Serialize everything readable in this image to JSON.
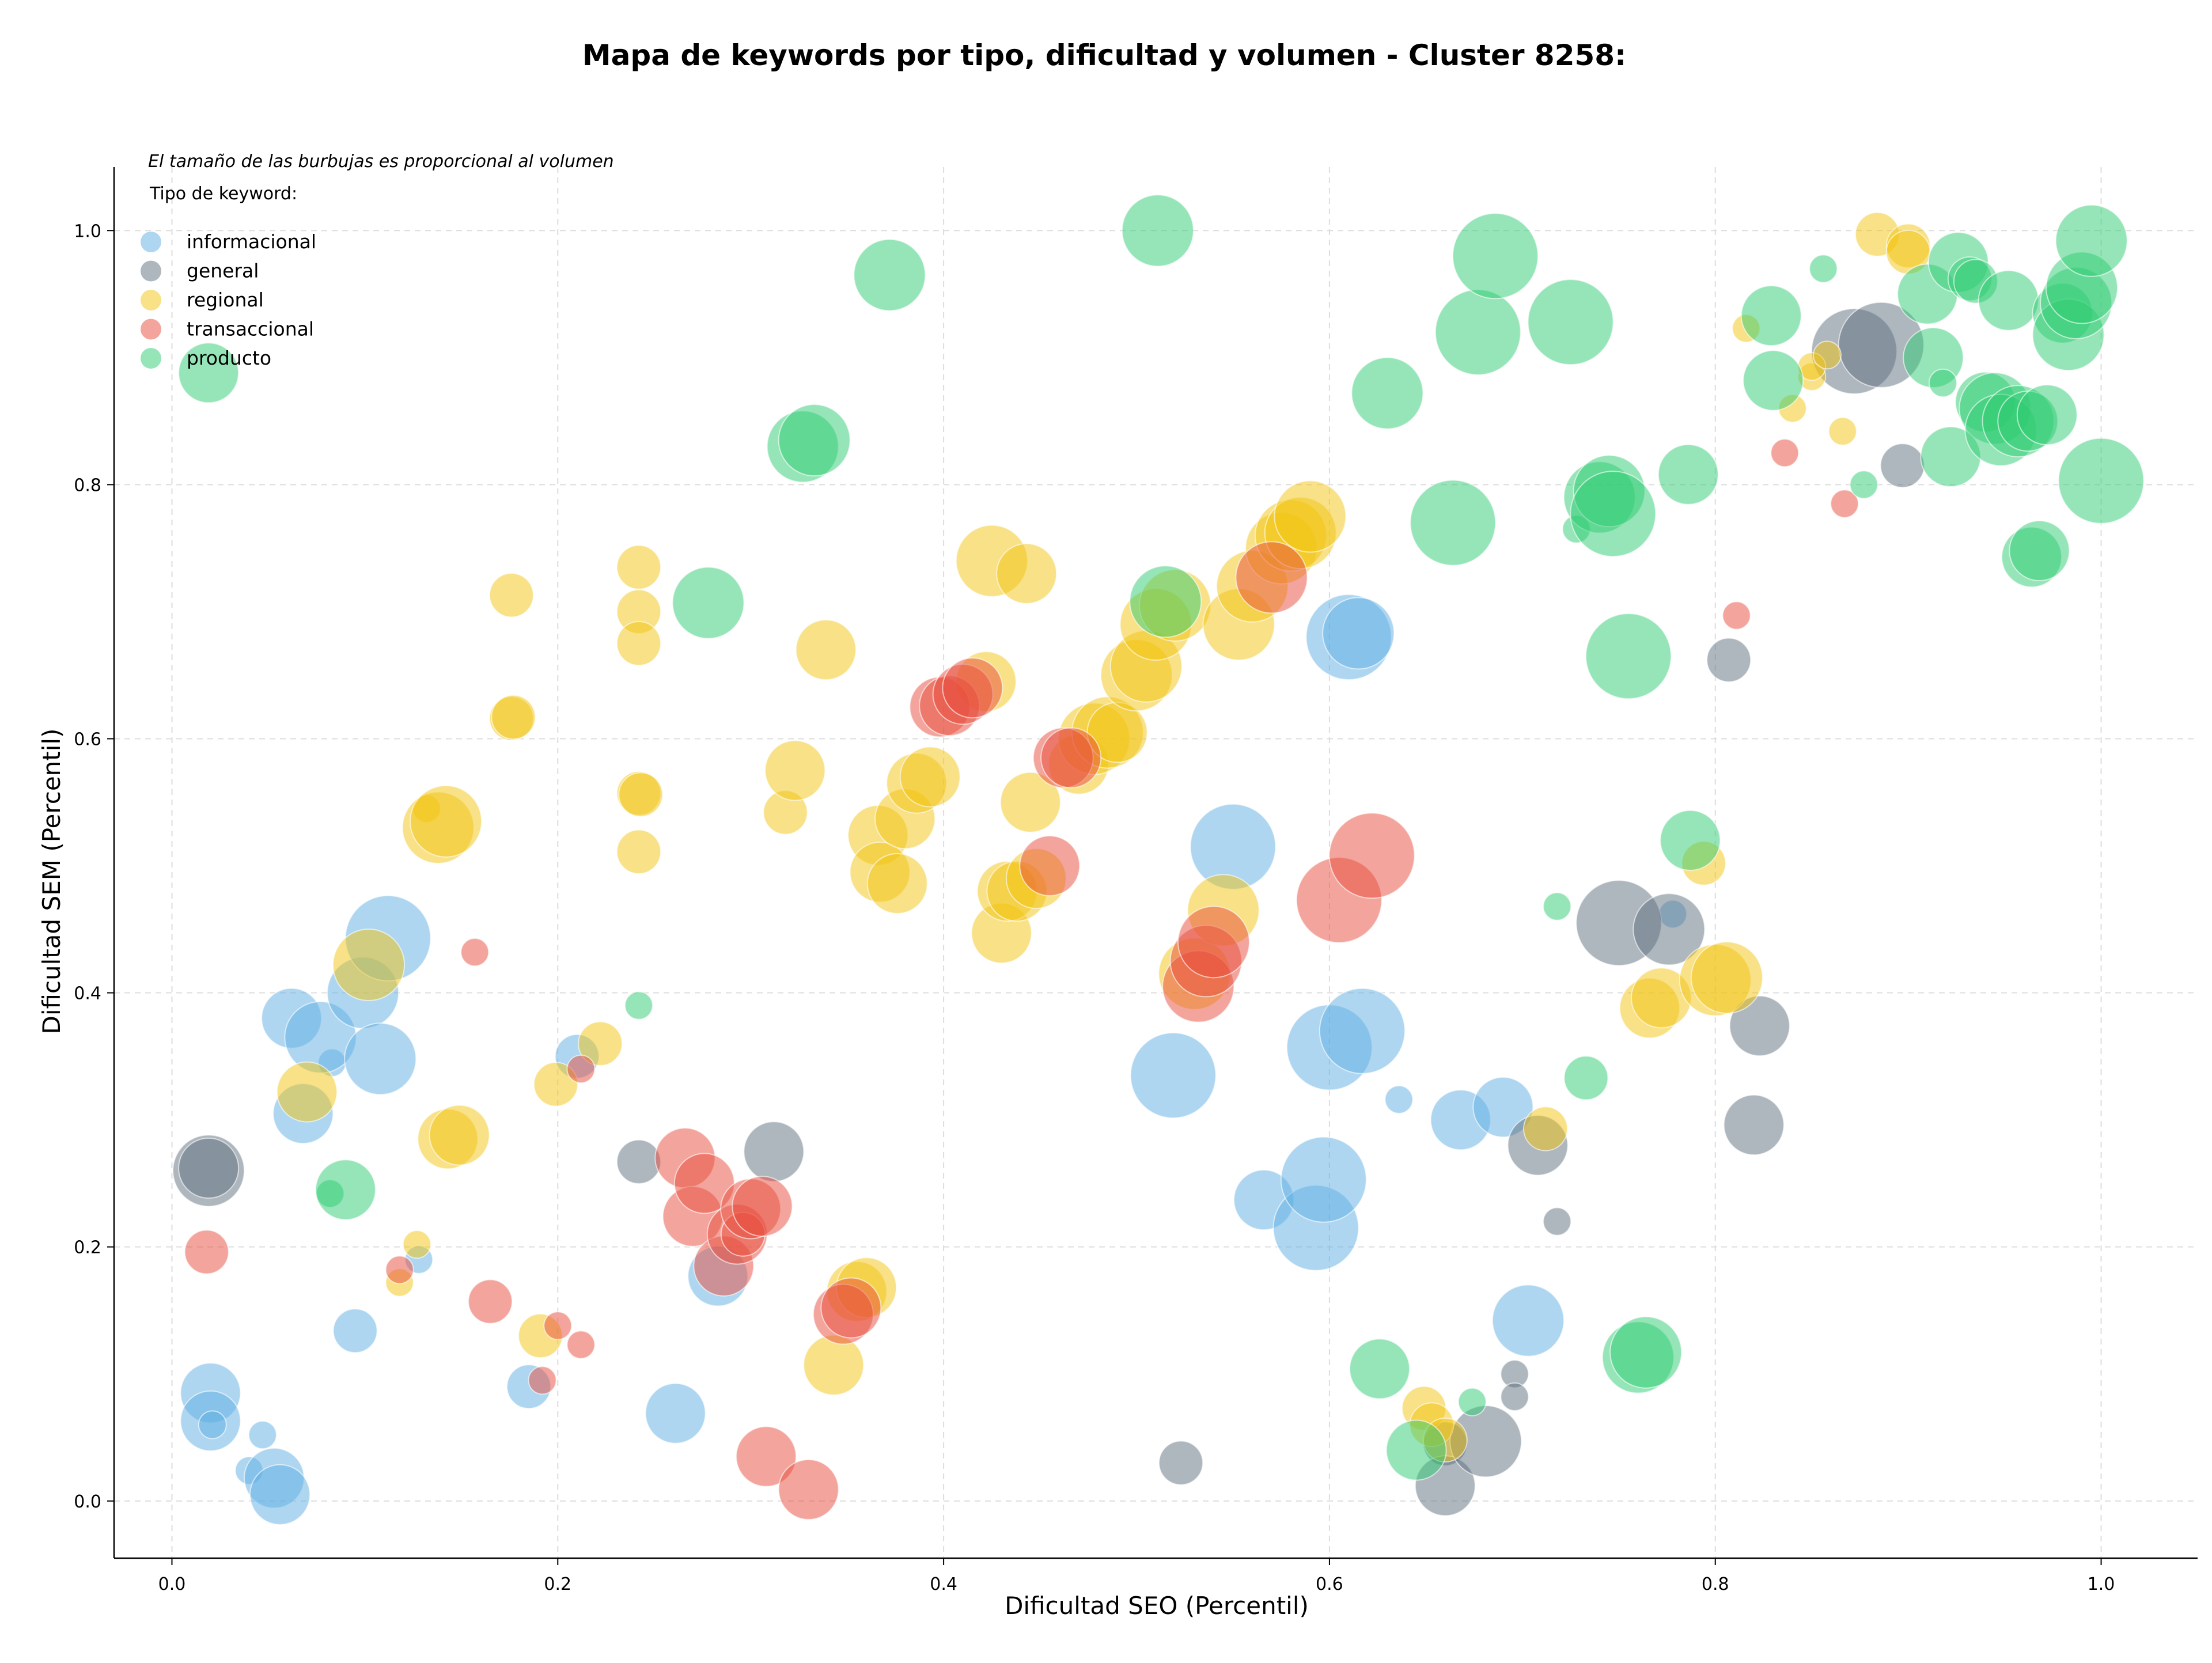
{
  "chart_data": {
    "type": "scatter",
    "title": "Mapa de keywords por tipo, dificultad y volumen - Cluster 8258:",
    "xlabel": "Dificultad SEO (Percentil)",
    "ylabel": "Dificultad SEM (Percentil)",
    "xlim": [
      -0.03,
      1.05
    ],
    "ylim": [
      -0.045,
      1.05
    ],
    "xticks": [
      "0.0",
      "0.2",
      "0.4",
      "0.6",
      "0.8",
      "1.0"
    ],
    "yticks": [
      "0.0",
      "0.2",
      "0.4",
      "0.6",
      "0.8",
      "1.0"
    ],
    "grid": true,
    "note": "El tamaño de las burbujas es proporcional al volumen",
    "legend_title": "Tipo de keyword:",
    "legend_position": "top-left",
    "series": [
      {
        "name": "informacional",
        "color": "#5dade2",
        "points": [
          [
            0.02,
            0.085,
            3
          ],
          [
            0.02,
            0.063,
            3
          ],
          [
            0.021,
            0.06,
            1
          ],
          [
            0.047,
            0.052,
            1
          ],
          [
            0.04,
            0.024,
            1
          ],
          [
            0.053,
            0.018,
            3
          ],
          [
            0.056,
            0.005,
            3
          ],
          [
            0.095,
            0.134,
            2
          ],
          [
            0.128,
            0.19,
            1
          ],
          [
            0.068,
            0.305,
            3
          ],
          [
            0.083,
            0.345,
            1
          ],
          [
            0.062,
            0.38,
            3
          ],
          [
            0.077,
            0.365,
            4
          ],
          [
            0.099,
            0.4,
            4
          ],
          [
            0.112,
            0.443,
            5
          ],
          [
            0.108,
            0.348,
            4
          ],
          [
            0.21,
            0.35,
            2
          ],
          [
            0.185,
            0.09,
            2
          ],
          [
            0.261,
            0.069,
            3
          ],
          [
            0.283,
            0.177,
            3
          ],
          [
            0.519,
            0.335,
            5
          ],
          [
            0.55,
            0.515,
            5
          ],
          [
            0.566,
            0.237,
            3
          ],
          [
            0.593,
            0.215,
            5
          ],
          [
            0.597,
            0.253,
            5
          ],
          [
            0.6,
            0.357,
            5
          ],
          [
            0.617,
            0.37,
            5
          ],
          [
            0.61,
            0.68,
            5
          ],
          [
            0.615,
            0.683,
            4
          ],
          [
            0.636,
            0.316,
            1
          ],
          [
            0.668,
            0.3,
            3
          ],
          [
            0.69,
            0.31,
            3
          ],
          [
            0.703,
            0.142,
            4
          ],
          [
            0.778,
            0.462,
            1
          ]
        ]
      },
      {
        "name": "general",
        "color": "#5d6d7e",
        "points": [
          [
            0.019,
            0.26,
            4
          ],
          [
            0.019,
            0.262,
            3
          ],
          [
            0.242,
            0.267,
            2
          ],
          [
            0.312,
            0.275,
            3
          ],
          [
            0.523,
            0.03,
            2
          ],
          [
            0.66,
            0.045,
            2
          ],
          [
            0.66,
            0.012,
            3
          ],
          [
            0.681,
            0.047,
            4
          ],
          [
            0.696,
            0.1,
            1
          ],
          [
            0.696,
            0.082,
            1
          ],
          [
            0.708,
            0.28,
            3
          ],
          [
            0.718,
            0.22,
            1
          ],
          [
            0.75,
            0.455,
            5
          ],
          [
            0.776,
            0.45,
            4
          ],
          [
            0.807,
            0.662,
            2
          ],
          [
            0.823,
            0.374,
            3
          ],
          [
            0.82,
            0.296,
            3
          ],
          [
            0.872,
            0.905,
            5
          ],
          [
            0.886,
            0.91,
            5
          ],
          [
            0.897,
            0.815,
            2
          ]
        ]
      },
      {
        "name": "regional",
        "color": "#f1c40f",
        "points": [
          [
            0.118,
            0.172,
            1
          ],
          [
            0.127,
            0.202,
            1
          ],
          [
            0.07,
            0.322,
            3
          ],
          [
            0.102,
            0.422,
            4
          ],
          [
            0.132,
            0.545,
            1
          ],
          [
            0.138,
            0.53,
            4
          ],
          [
            0.142,
            0.535,
            4
          ],
          [
            0.143,
            0.285,
            3
          ],
          [
            0.149,
            0.288,
            3
          ],
          [
            0.176,
            0.713,
            2
          ],
          [
            0.176,
            0.616,
            2
          ],
          [
            0.177,
            0.617,
            2
          ],
          [
            0.191,
            0.13,
            2
          ],
          [
            0.199,
            0.328,
            2
          ],
          [
            0.222,
            0.36,
            2
          ],
          [
            0.242,
            0.735,
            2
          ],
          [
            0.242,
            0.7,
            2
          ],
          [
            0.242,
            0.675,
            2
          ],
          [
            0.242,
            0.557,
            2
          ],
          [
            0.243,
            0.556,
            2
          ],
          [
            0.242,
            0.511,
            2
          ],
          [
            0.318,
            0.542,
            2
          ],
          [
            0.323,
            0.575,
            3
          ],
          [
            0.339,
            0.67,
            3
          ],
          [
            0.343,
            0.107,
            3
          ],
          [
            0.355,
            0.165,
            3
          ],
          [
            0.36,
            0.168,
            3
          ],
          [
            0.366,
            0.524,
            3
          ],
          [
            0.367,
            0.495,
            3
          ],
          [
            0.376,
            0.486,
            3
          ],
          [
            0.38,
            0.537,
            3
          ],
          [
            0.386,
            0.565,
            3
          ],
          [
            0.393,
            0.57,
            3
          ],
          [
            0.425,
            0.74,
            4
          ],
          [
            0.43,
            0.447,
            3
          ],
          [
            0.433,
            0.48,
            3
          ],
          [
            0.438,
            0.48,
            3
          ],
          [
            0.443,
            0.73,
            3
          ],
          [
            0.445,
            0.55,
            3
          ],
          [
            0.448,
            0.49,
            3
          ],
          [
            0.422,
            0.645,
            3
          ],
          [
            0.47,
            0.58,
            3
          ],
          [
            0.478,
            0.6,
            4
          ],
          [
            0.485,
            0.605,
            4
          ],
          [
            0.49,
            0.605,
            3
          ],
          [
            0.5,
            0.65,
            4
          ],
          [
            0.505,
            0.657,
            4
          ],
          [
            0.51,
            0.69,
            4
          ],
          [
            0.52,
            0.705,
            4
          ],
          [
            0.53,
            0.415,
            4
          ],
          [
            0.545,
            0.465,
            4
          ],
          [
            0.553,
            0.69,
            4
          ],
          [
            0.56,
            0.72,
            4
          ],
          [
            0.575,
            0.75,
            4
          ],
          [
            0.58,
            0.76,
            4
          ],
          [
            0.585,
            0.762,
            4
          ],
          [
            0.59,
            0.775,
            4
          ],
          [
            0.712,
            0.293,
            2
          ],
          [
            0.766,
            0.388,
            3
          ],
          [
            0.772,
            0.396,
            3
          ],
          [
            0.794,
            0.502,
            2
          ],
          [
            0.8,
            0.41,
            4
          ],
          [
            0.806,
            0.412,
            4
          ],
          [
            0.816,
            0.923,
            1
          ],
          [
            0.84,
            0.86,
            1
          ],
          [
            0.85,
            0.885,
            1
          ],
          [
            0.85,
            0.893,
            1
          ],
          [
            0.858,
            0.902,
            1
          ],
          [
            0.866,
            0.842,
            1
          ],
          [
            0.884,
            0.997,
            2
          ],
          [
            0.9,
            0.988,
            2
          ],
          [
            0.9,
            0.983,
            2
          ],
          [
            0.649,
            0.073,
            2
          ],
          [
            0.653,
            0.06,
            2
          ],
          [
            0.66,
            0.048,
            2
          ]
        ]
      },
      {
        "name": "transaccional",
        "color": "#e74c3c",
        "points": [
          [
            0.018,
            0.196,
            2
          ],
          [
            0.118,
            0.182,
            1
          ],
          [
            0.157,
            0.432,
            1
          ],
          [
            0.165,
            0.157,
            2
          ],
          [
            0.192,
            0.095,
            1
          ],
          [
            0.2,
            0.138,
            1
          ],
          [
            0.212,
            0.34,
            1
          ],
          [
            0.212,
            0.123,
            1
          ],
          [
            0.266,
            0.27,
            3
          ],
          [
            0.27,
            0.224,
            3
          ],
          [
            0.276,
            0.25,
            3
          ],
          [
            0.286,
            0.185,
            3
          ],
          [
            0.293,
            0.21,
            3
          ],
          [
            0.296,
            0.21,
            2
          ],
          [
            0.3,
            0.23,
            3
          ],
          [
            0.306,
            0.232,
            3
          ],
          [
            0.308,
            0.035,
            3
          ],
          [
            0.33,
            0.009,
            3
          ],
          [
            0.348,
            0.147,
            3
          ],
          [
            0.352,
            0.152,
            3
          ],
          [
            0.398,
            0.625,
            3
          ],
          [
            0.403,
            0.626,
            3
          ],
          [
            0.41,
            0.635,
            3
          ],
          [
            0.415,
            0.64,
            3
          ],
          [
            0.455,
            0.5,
            3
          ],
          [
            0.462,
            0.585,
            3
          ],
          [
            0.466,
            0.585,
            3
          ],
          [
            0.532,
            0.405,
            4
          ],
          [
            0.536,
            0.425,
            4
          ],
          [
            0.54,
            0.44,
            4
          ],
          [
            0.57,
            0.727,
            4
          ],
          [
            0.605,
            0.473,
            5
          ],
          [
            0.622,
            0.508,
            5
          ],
          [
            0.811,
            0.697,
            1
          ],
          [
            0.836,
            0.825,
            1
          ],
          [
            0.867,
            0.785,
            1
          ]
        ]
      },
      {
        "name": "producto",
        "color": "#2ecc71",
        "points": [
          [
            0.019,
            0.888,
            3
          ],
          [
            0.082,
            0.242,
            1
          ],
          [
            0.09,
            0.245,
            3
          ],
          [
            0.242,
            0.39,
            1
          ],
          [
            0.278,
            0.707,
            4
          ],
          [
            0.327,
            0.83,
            4
          ],
          [
            0.333,
            0.835,
            4
          ],
          [
            0.372,
            0.965,
            4
          ],
          [
            0.511,
            1.0,
            4
          ],
          [
            0.515,
            0.708,
            4
          ],
          [
            0.626,
            0.104,
            3
          ],
          [
            0.63,
            0.872,
            4
          ],
          [
            0.645,
            0.04,
            3
          ],
          [
            0.664,
            0.77,
            5
          ],
          [
            0.674,
            0.078,
            1
          ],
          [
            0.677,
            0.92,
            5
          ],
          [
            0.686,
            0.98,
            5
          ],
          [
            0.725,
            0.928,
            5
          ],
          [
            0.728,
            0.765,
            1
          ],
          [
            0.733,
            0.333,
            2
          ],
          [
            0.718,
            0.468,
            1
          ],
          [
            0.74,
            0.79,
            4
          ],
          [
            0.745,
            0.795,
            4
          ],
          [
            0.747,
            0.777,
            5
          ],
          [
            0.755,
            0.665,
            5
          ],
          [
            0.76,
            0.113,
            4
          ],
          [
            0.764,
            0.117,
            4
          ],
          [
            0.786,
            0.808,
            3
          ],
          [
            0.787,
            0.52,
            3
          ],
          [
            0.829,
            0.933,
            3
          ],
          [
            0.83,
            0.882,
            3
          ],
          [
            0.856,
            0.97,
            1
          ],
          [
            0.877,
            0.8,
            1
          ],
          [
            0.91,
            0.95,
            3
          ],
          [
            0.913,
            0.9,
            3
          ],
          [
            0.918,
            0.88,
            1
          ],
          [
            0.922,
            0.822,
            3
          ],
          [
            0.926,
            0.975,
            3
          ],
          [
            0.932,
            0.962,
            2
          ],
          [
            0.935,
            0.96,
            2
          ],
          [
            0.94,
            0.865,
            3
          ],
          [
            0.945,
            0.86,
            4
          ],
          [
            0.948,
            0.843,
            4
          ],
          [
            0.952,
            0.945,
            3
          ],
          [
            0.957,
            0.85,
            4
          ],
          [
            0.962,
            0.85,
            3
          ],
          [
            0.964,
            0.743,
            3
          ],
          [
            0.968,
            0.748,
            3
          ],
          [
            0.972,
            0.855,
            3
          ],
          [
            0.98,
            0.935,
            3
          ],
          [
            0.983,
            0.918,
            4
          ],
          [
            0.987,
            0.943,
            4
          ],
          [
            0.99,
            0.955,
            4
          ],
          [
            0.995,
            0.992,
            4
          ],
          [
            1.0,
            0.803,
            5
          ]
        ]
      }
    ]
  }
}
